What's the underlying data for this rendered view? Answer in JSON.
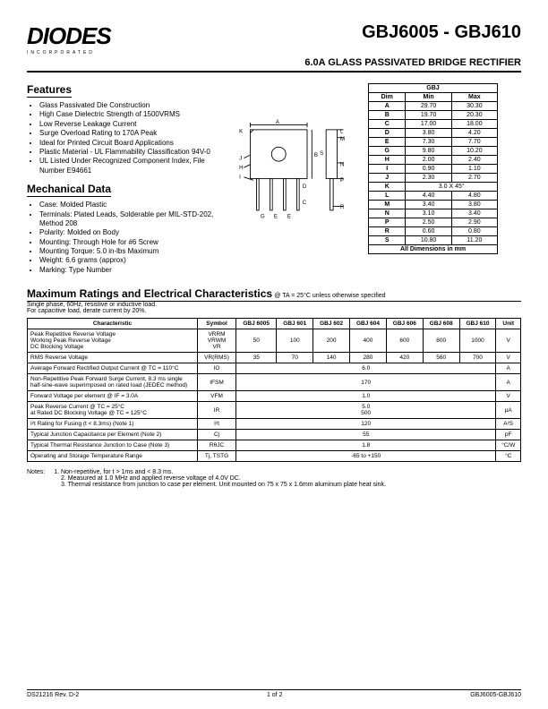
{
  "logo": "DIODES",
  "logo_sub": "INCORPORATED",
  "title": "GBJ6005 - GBJ610",
  "subtitle": "6.0A GLASS PASSIVATED BRIDGE RECTIFIER",
  "features_h": "Features",
  "features": [
    "Glass Passivated Die Construction",
    "High Case Dielectric Strength of 1500VRMS",
    "Low Reverse Leakage Current",
    "Surge Overload Rating to 170A Peak",
    "Ideal for Printed Circuit Board Applications",
    "Plastic Material - UL Flammability Classification 94V-0",
    "UL Listed Under Recognized Component Index, File Number E94661"
  ],
  "mech_h": "Mechanical Data",
  "mech": [
    "Case: Molded Plastic",
    "Terminals: Plated Leads, Solderable per MIL-STD-202, Method 208",
    "Polarity: Molded on Body",
    "Mounting: Through Hole for #6 Screw",
    "Mounting Torque: 5.0 in-lbs Maximum",
    "Weight: 6.6 grams (approx)",
    "Marking: Type Number"
  ],
  "dim_hdr": "GBJ",
  "dim_cols": [
    "Dim",
    "Min",
    "Max"
  ],
  "dims": [
    [
      "A",
      "29.70",
      "30.30"
    ],
    [
      "B",
      "19.70",
      "20.30"
    ],
    [
      "C",
      "17.00",
      "18.00"
    ],
    [
      "D",
      "3.80",
      "4.20"
    ],
    [
      "E",
      "7.30",
      "7.70"
    ],
    [
      "G",
      "9.80",
      "10.20"
    ],
    [
      "H",
      "2.00",
      "2.40"
    ],
    [
      "I",
      "0.90",
      "1.10"
    ],
    [
      "J",
      "2.30",
      "2.70"
    ]
  ],
  "dim_k": [
    "K",
    "3.0 X 45°"
  ],
  "dims2": [
    [
      "L",
      "4.40",
      "4.80"
    ],
    [
      "M",
      "3.40",
      "3.80"
    ],
    [
      "N",
      "3.10",
      "3.40"
    ],
    [
      "P",
      "2.50",
      "2.90"
    ],
    [
      "R",
      "0.60",
      "0.80"
    ],
    [
      "S",
      "10.80",
      "11.20"
    ]
  ],
  "dim_foot": "All Dimensions in mm",
  "ratings_h": "Maximum Ratings and Electrical Characteristics",
  "ratings_cond": "@ TA = 25°C unless otherwise specified",
  "ratings_note1": "Single phase, 60Hz, resistive or inductive load.",
  "ratings_note2": "For capacitive load, derate current by 20%.",
  "spec_cols": [
    "Characteristic",
    "Symbol",
    "GBJ 6005",
    "GBJ 601",
    "GBJ 602",
    "GBJ 604",
    "GBJ 606",
    "GBJ 608",
    "GBJ 610",
    "Unit"
  ],
  "spec_rows": [
    {
      "char": "Peak Repetitive Reverse Voltage\nWorking Peak Reverse Voltage\nDC Blocking Voltage",
      "sym": "VRRM\nVRWM\nVR",
      "vals": [
        "50",
        "100",
        "200",
        "400",
        "600",
        "800",
        "1000"
      ],
      "unit": "V"
    },
    {
      "char": "RMS Reverse Voltage",
      "sym": "VR(RMS)",
      "vals": [
        "35",
        "70",
        "140",
        "280",
        "420",
        "560",
        "700"
      ],
      "unit": "V"
    },
    {
      "char": "Average Forward Rectified Output Current   @ TC = 110°C",
      "sym": "IO",
      "span": "6.0",
      "unit": "A"
    },
    {
      "char": "Non-Repetitive Peak Forward Surge Current, 8.3 ms single half-sine-wave superimposed on rated load (JEDEC method)",
      "sym": "IFSM",
      "span": "170",
      "unit": "A"
    },
    {
      "char": "Forward Voltage per element                    @ IF = 3.0A",
      "sym": "VFM",
      "span": "1.0",
      "unit": "V"
    },
    {
      "char": "Peak Reverse Current                           @ TC = 25°C\nat Rated DC Blocking Voltage               @ TC = 125°C",
      "sym": "IR",
      "span": "5.0\n500",
      "unit": "µA"
    },
    {
      "char": "I²t Rating for Fusing (t < 8.3ms) (Note 1)",
      "sym": "I²t",
      "span": "120",
      "unit": "A²S"
    },
    {
      "char": "Typical Junction Capacitance per Element (Note 2)",
      "sym": "Cj",
      "span": "55",
      "unit": "pF"
    },
    {
      "char": "Typical Thermal Resistance Junction to Case (Note 3)",
      "sym": "RθJC",
      "span": "1.8",
      "unit": "°C/W"
    },
    {
      "char": "Operating and Storage Temperature Range",
      "sym": "Tj, TSTG",
      "span": "-65 to +150",
      "unit": "°C"
    }
  ],
  "notes_label": "Notes:",
  "notes": [
    "1. Non-repetitive, for t > 1ms and < 8.3 ms.",
    "2. Measured at 1.0 MHz and applied reverse voltage of 4.0V DC.",
    "3. Thermal resistance from junction to case per element. Unit mounted on 75 x 75 x 1.6mm aluminum plate heat sink."
  ],
  "footer_left": "DS21216 Rev. D-2",
  "footer_mid": "1 of 2",
  "footer_right": "GBJ6005-GBJ610",
  "fig_labels": [
    "K",
    "J",
    "H",
    "I",
    "G",
    "E",
    "E",
    "A",
    "B",
    "D",
    "C",
    "L",
    "M",
    "S",
    "N",
    "P",
    "R"
  ]
}
